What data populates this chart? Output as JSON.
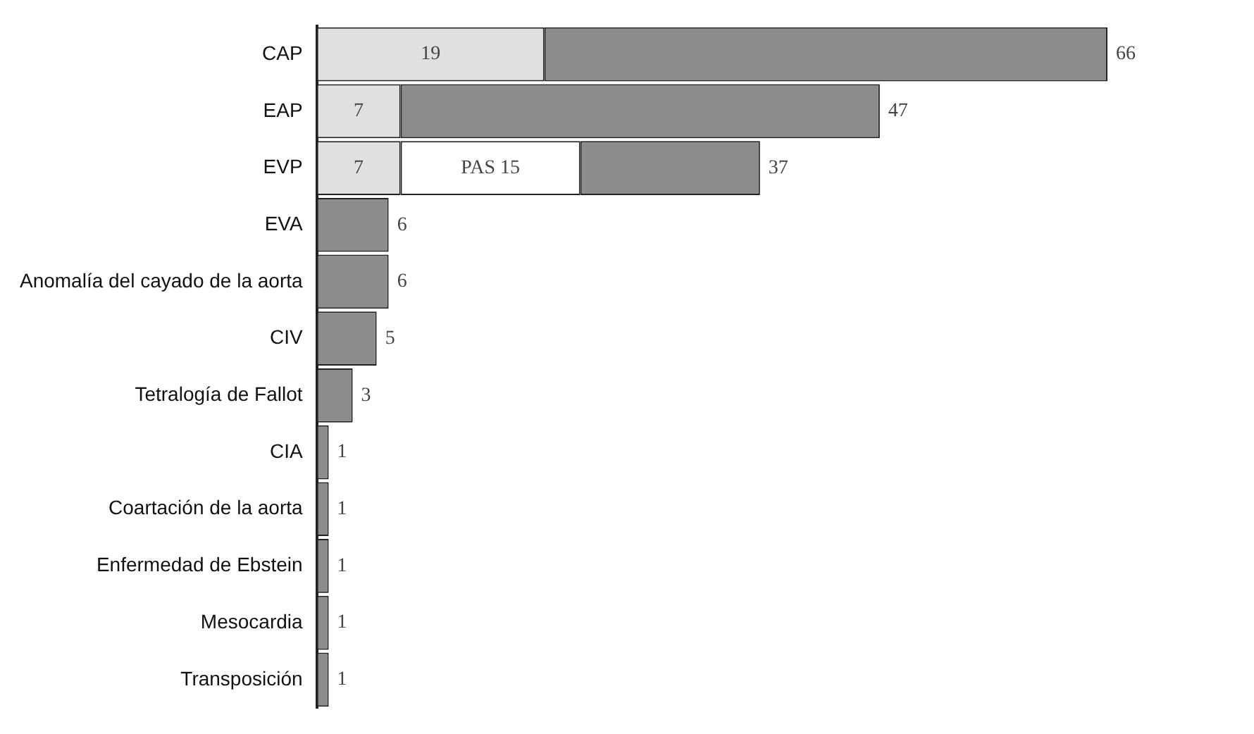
{
  "chart_data": {
    "type": "bar",
    "orientation": "horizontal",
    "stacked": true,
    "categories": [
      "CAP",
      "EAP",
      "EVP",
      "EVA",
      "Anomalía del cayado de la aorta",
      "CIV",
      "Tetralogía de Fallot",
      "CIA",
      "Coartación de la aorta",
      "Enfermedad de Ebstein",
      "Mesocardia",
      "Transposición"
    ],
    "series": [
      {
        "color": "#e0e0e0",
        "values": [
          19,
          7,
          7,
          null,
          null,
          null,
          null,
          null,
          null,
          null,
          null,
          null
        ],
        "value_labels": [
          "19",
          "7",
          "7",
          null,
          null,
          null,
          null,
          null,
          null,
          null,
          null,
          null
        ]
      },
      {
        "color": "#ffffff",
        "values": [
          null,
          null,
          15,
          null,
          null,
          null,
          null,
          null,
          null,
          null,
          null,
          null
        ],
        "value_labels": [
          null,
          null,
          "PAS 15",
          null,
          null,
          null,
          null,
          null,
          null,
          null,
          null,
          null
        ]
      },
      {
        "color": "#8c8c8c",
        "values": [
          47,
          40,
          15,
          6,
          6,
          5,
          3,
          1,
          1,
          1,
          1,
          1
        ]
      }
    ],
    "totals": [
      "66",
      "47",
      "37",
      "6",
      "6",
      "5",
      "3",
      "1",
      "1",
      "1",
      "1",
      "1"
    ],
    "tick_labels": "y"
  }
}
